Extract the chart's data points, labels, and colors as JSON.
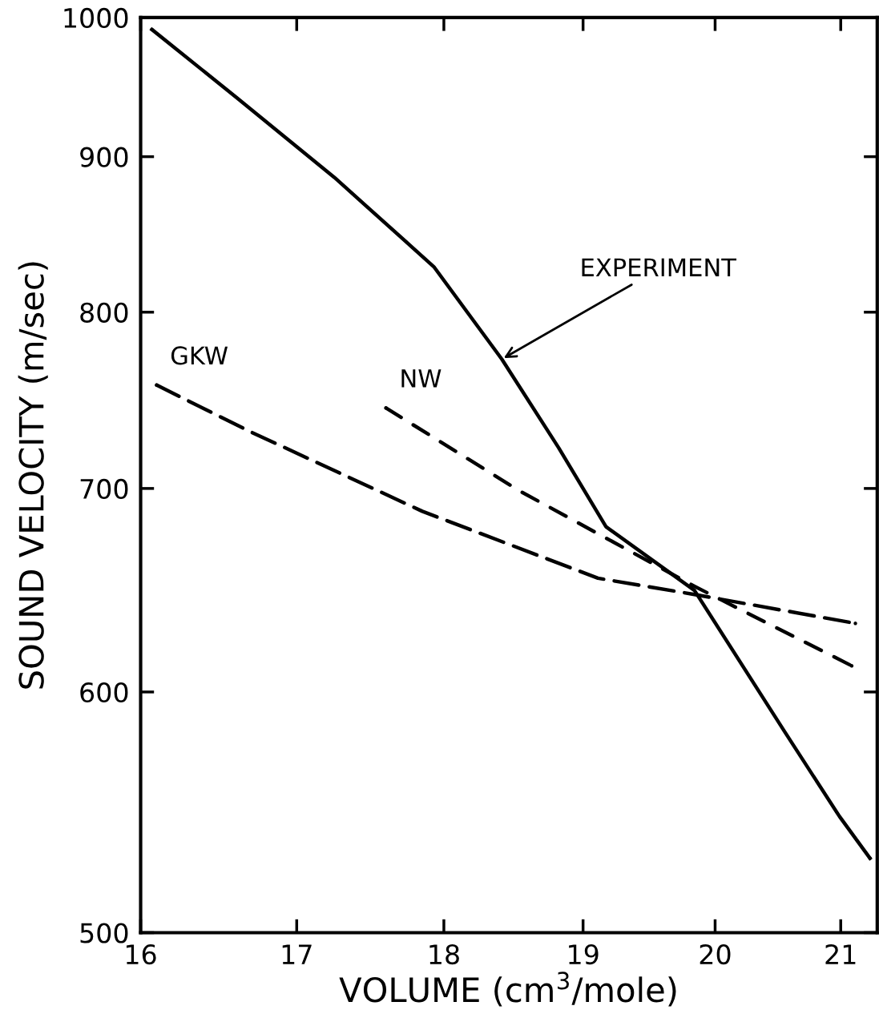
{
  "chart_data": {
    "type": "line",
    "xlabel": "VOLUME (cm$^{3}$/mole)",
    "ylabel": "SOUND VELOCITY (m/sec)",
    "log": "xy",
    "grid": false,
    "legend": false,
    "xlim": [
      16,
      21.3
    ],
    "xticks": [
      16,
      17,
      18,
      19,
      20,
      21
    ],
    "ylim": [
      500,
      1000
    ],
    "yticks": [
      500,
      600,
      700,
      800,
      900,
      1000
    ],
    "series": [
      {
        "color": "#000000",
        "line_style": "solid",
        "x": [
          16.07,
          16.61,
          17.25,
          17.93,
          18.41,
          18.82,
          19.17,
          19.84,
          20.55,
          20.99,
          21.24
        ],
        "values": [
          991,
          941,
          886,
          828,
          772,
          722,
          680,
          648,
          582,
          546,
          529
        ]
      },
      {
        "color": "#000000",
        "line_style": "dashed",
        "x": [
          16.1,
          16.69,
          17.85,
          19.11,
          19.84,
          21.12
        ],
        "values": [
          757,
          731,
          688,
          654,
          646,
          632
        ]
      },
      {
        "color": "#000000",
        "line_style": "dotted",
        "x": [
          17.6,
          18.53,
          19.84,
          21.09
        ],
        "values": [
          744,
          699,
          650,
          612
        ]
      }
    ],
    "annotations": [
      {
        "text": "EXPERIMENT",
        "x": 18.41,
        "y": 772
      },
      {
        "text": "GKW",
        "x": 16.1,
        "y": 757
      },
      {
        "text": "NW",
        "x": 17.6,
        "y": 744
      }
    ]
  }
}
